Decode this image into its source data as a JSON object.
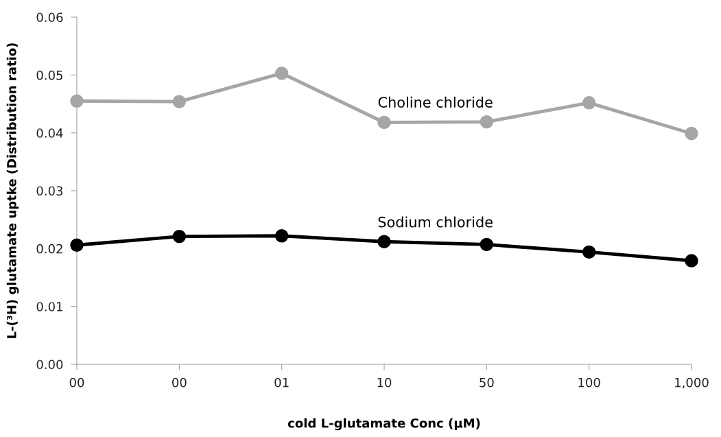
{
  "chart_data": {
    "type": "line",
    "xlabel": "cold L-glutamate Conc (µM)",
    "ylabel": "L-(³H) glutamate uptke (Distribution ratio)",
    "categories": [
      "00",
      "00",
      "01",
      "10",
      "50",
      "100",
      "1,000"
    ],
    "series": [
      {
        "name": "Choline chloride",
        "color": "#a6a6a6",
        "values": [
          0.0455,
          0.0454,
          0.0503,
          0.0418,
          0.0419,
          0.0452,
          0.0399
        ]
      },
      {
        "name": "Sodium chloride",
        "color": "#000000",
        "values": [
          0.0206,
          0.0221,
          0.0222,
          0.0212,
          0.0207,
          0.0194,
          0.0179
        ]
      }
    ],
    "ylim": [
      0,
      0.06
    ],
    "yticks": [
      {
        "value": 0,
        "label": "0.00"
      },
      {
        "value": 0.01,
        "label": "0.01"
      },
      {
        "value": 0.02,
        "label": "0.02"
      },
      {
        "value": 0.03,
        "label": "0.03"
      },
      {
        "value": 0.04,
        "label": "0.04"
      },
      {
        "value": 0.05,
        "label": "0.05"
      },
      {
        "value": 0.06,
        "label": "0.06"
      }
    ],
    "grid": false,
    "legend": false,
    "marker": "circle",
    "line_style": "solid"
  }
}
